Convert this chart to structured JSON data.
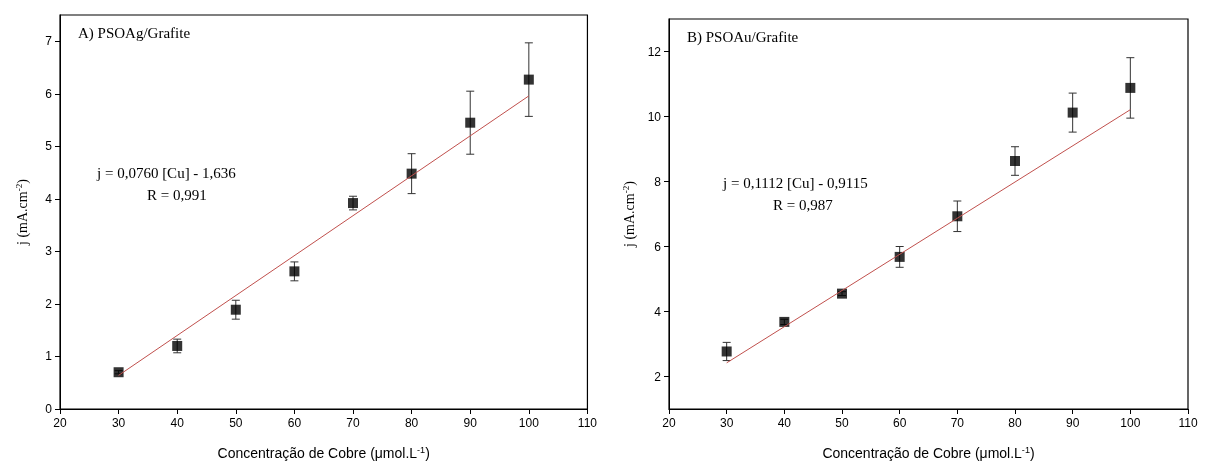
{
  "chart_data": [
    {
      "type": "scatter",
      "title": "A) PSOAg/Grafite",
      "xlabel": "Concentração de Cobre (μmol.L$^{-1}$)",
      "ylabel": "j (mA.cm$^{-2}$)",
      "annotations": [
        "j = 0,0760 [Cu] - 1,636",
        "R = 0,991"
      ],
      "xlim": [
        20,
        110
      ],
      "xticks": [
        20,
        30,
        40,
        50,
        60,
        70,
        80,
        90,
        100,
        110
      ],
      "ylim": [
        0,
        7.5
      ],
      "yticks": [
        0,
        1,
        2,
        3,
        4,
        5,
        6,
        7
      ],
      "grid": false,
      "marker": "square",
      "series": [
        {
          "color": "#000000",
          "x": [
            30,
            40,
            50,
            60,
            70,
            80,
            90,
            100
          ],
          "values": [
            0.7,
            1.2,
            1.89,
            2.62,
            3.92,
            4.48,
            5.45,
            6.27
          ],
          "errors": [
            0.03,
            0.13,
            0.18,
            0.18,
            0.13,
            0.38,
            0.6,
            0.7
          ]
        },
        {
          "type": "line",
          "color": "#c0504d",
          "x": [
            30,
            100
          ],
          "values": [
            0.64,
            5.96
          ],
          "marker": "none"
        }
      ]
    },
    {
      "type": "scatter",
      "title": "B) PSOAu/Grafite",
      "xlabel": "Concentração de Cobre (μmol.L$^{-1}$)",
      "ylabel": "j (mA.cm$^{-2}$)",
      "annotations": [
        "j = 0,1112 [Cu] - 0,9115",
        "R = 0,987"
      ],
      "xlim": [
        20,
        110
      ],
      "xticks": [
        20,
        30,
        40,
        50,
        60,
        70,
        80,
        90,
        100,
        110
      ],
      "ylim": [
        1,
        13
      ],
      "yticks": [
        2,
        4,
        6,
        8,
        10,
        12
      ],
      "grid": false,
      "marker": "square",
      "series": [
        {
          "color": "#000000",
          "x": [
            30,
            40,
            50,
            60,
            70,
            80,
            90,
            100
          ],
          "values": [
            2.77,
            3.68,
            4.55,
            5.68,
            6.93,
            8.63,
            10.12,
            10.88
          ],
          "errors": [
            0.28,
            0.08,
            0.06,
            0.32,
            0.47,
            0.44,
            0.6,
            0.93
          ]
        },
        {
          "type": "line",
          "color": "#c0504d",
          "x": [
            30,
            100
          ],
          "values": [
            2.42,
            10.21
          ],
          "marker": "none"
        }
      ]
    }
  ]
}
